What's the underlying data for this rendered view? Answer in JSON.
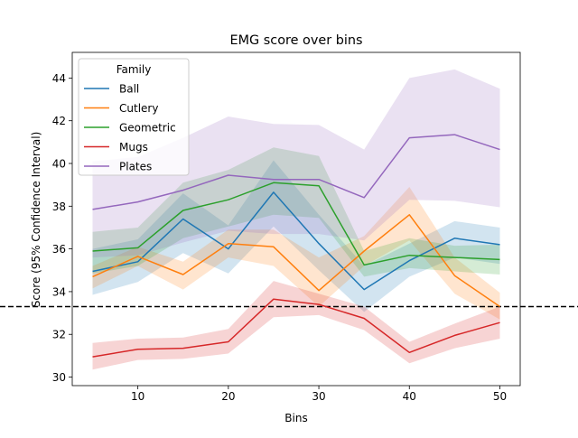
{
  "chart_data": {
    "type": "line",
    "title": "EMG score over bins",
    "xlabel": "Bins",
    "ylabel": "Score (95% Confidence Interval)",
    "xlim": [
      2.75,
      52.25
    ],
    "ylim": [
      29.6,
      45.2
    ],
    "xticks": [
      10,
      20,
      30,
      40,
      50
    ],
    "yticks": [
      30,
      32,
      34,
      36,
      38,
      40,
      42,
      44
    ],
    "grid": false,
    "legend": {
      "title": "Family",
      "placement": "top-left"
    },
    "reference_line": {
      "y": 33.3,
      "style": "dashed",
      "color": "#000000"
    },
    "x": [
      5,
      10,
      15,
      20,
      25,
      30,
      35,
      40,
      45,
      50
    ],
    "series": [
      {
        "name": "Ball",
        "color": "#1f77b4",
        "values": [
          34.95,
          35.4,
          37.4,
          36.0,
          38.65,
          36.25,
          34.1,
          35.45,
          36.5,
          36.2
        ],
        "ci_low": [
          33.85,
          34.45,
          35.8,
          34.85,
          37.05,
          35.0,
          33.05,
          34.7,
          35.6,
          35.3
        ],
        "ci_high": [
          36.0,
          36.45,
          38.6,
          37.1,
          40.15,
          37.6,
          35.2,
          36.25,
          37.3,
          37.0
        ]
      },
      {
        "name": "Cutlery",
        "color": "#ff7f0e",
        "values": [
          34.7,
          35.65,
          34.8,
          36.25,
          36.1,
          34.05,
          35.9,
          37.6,
          34.75,
          33.3
        ],
        "ci_low": [
          34.15,
          35.2,
          34.1,
          35.6,
          35.2,
          33.3,
          35.2,
          36.4,
          33.9,
          32.7
        ],
        "ci_high": [
          35.2,
          36.1,
          35.4,
          36.9,
          36.9,
          35.6,
          36.6,
          38.9,
          35.6,
          33.95
        ]
      },
      {
        "name": "Geometric",
        "color": "#2ca02c",
        "values": [
          35.9,
          36.05,
          37.8,
          38.3,
          39.1,
          38.95,
          35.25,
          35.7,
          35.6,
          35.5
        ],
        "ci_low": [
          34.85,
          35.2,
          36.5,
          37.05,
          37.6,
          37.45,
          34.7,
          35.1,
          34.95,
          34.8
        ],
        "ci_high": [
          36.8,
          37.0,
          39.1,
          39.7,
          40.75,
          40.35,
          35.9,
          36.5,
          36.15,
          36.2
        ]
      },
      {
        "name": "Mugs",
        "color": "#d62728",
        "values": [
          30.95,
          31.3,
          31.35,
          31.65,
          33.65,
          33.4,
          32.75,
          31.15,
          31.95,
          32.55
        ],
        "ci_low": [
          30.35,
          30.8,
          30.85,
          31.1,
          32.8,
          32.9,
          32.2,
          30.65,
          31.35,
          31.8
        ],
        "ci_high": [
          31.6,
          31.8,
          31.85,
          32.25,
          34.5,
          33.9,
          33.3,
          31.65,
          32.5,
          33.3
        ]
      },
      {
        "name": "Plates",
        "color": "#9467bd",
        "values": [
          37.85,
          38.2,
          38.75,
          39.45,
          39.25,
          39.25,
          38.4,
          41.2,
          41.35,
          40.65
        ],
        "ci_low": [
          35.6,
          35.7,
          36.3,
          36.85,
          36.7,
          36.7,
          36.4,
          38.3,
          38.25,
          37.95
        ],
        "ci_high": [
          40.1,
          40.3,
          41.2,
          42.2,
          41.85,
          41.8,
          40.65,
          44.0,
          44.4,
          43.5
        ]
      }
    ]
  }
}
